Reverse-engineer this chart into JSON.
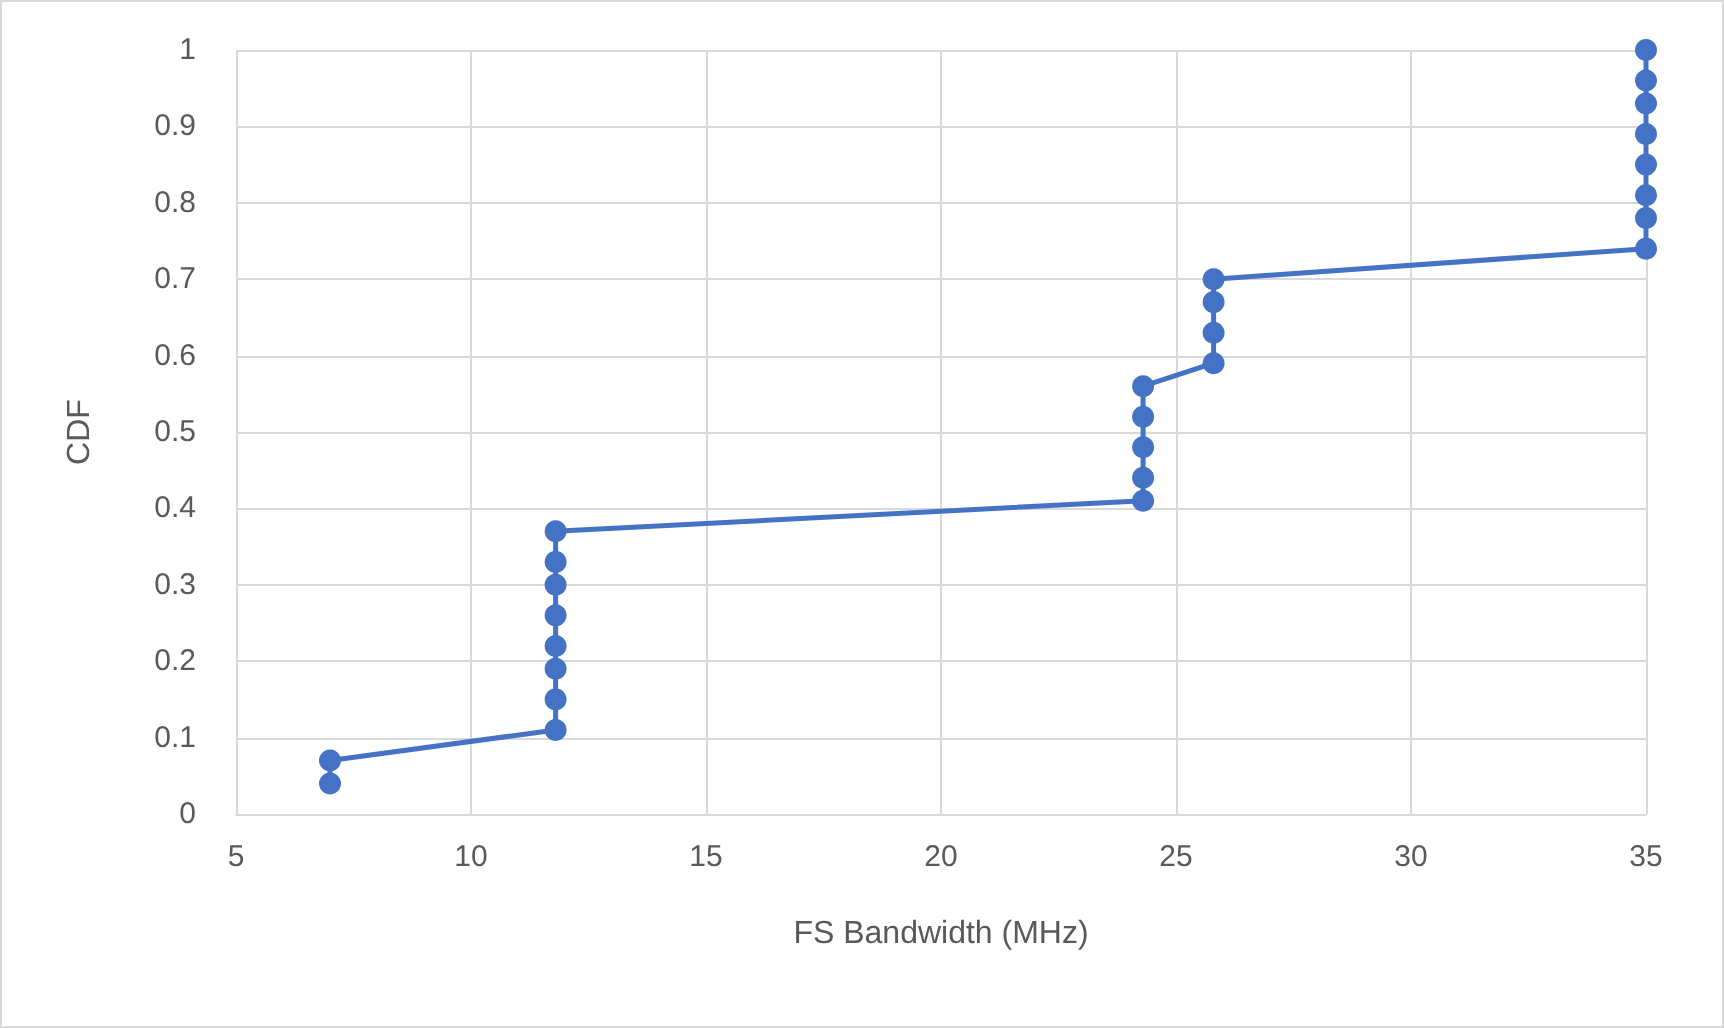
{
  "chart_data": {
    "type": "line",
    "xlabel": "FS Bandwidth (MHz)",
    "ylabel": "CDF",
    "x": [
      7,
      7,
      11.8,
      11.8,
      11.8,
      11.8,
      11.8,
      11.8,
      11.8,
      11.8,
      24.3,
      24.3,
      24.3,
      24.3,
      24.3,
      25.8,
      25.8,
      25.8,
      25.8,
      35,
      35,
      35,
      35,
      35,
      35,
      35,
      35
    ],
    "series": [
      {
        "color": "#4472c4",
        "values": [
          0.04,
          0.07,
          0.11,
          0.15,
          0.19,
          0.22,
          0.26,
          0.3,
          0.33,
          0.37,
          0.41,
          0.44,
          0.48,
          0.52,
          0.56,
          0.59,
          0.63,
          0.67,
          0.7,
          0.74,
          0.78,
          0.81,
          0.85,
          0.89,
          0.93,
          0.96,
          1
        ]
      }
    ],
    "xlim": [
      5,
      35
    ],
    "xticks": [
      5,
      10,
      15,
      20,
      25,
      30,
      35
    ],
    "ylim": [
      0,
      1
    ],
    "yticks": [
      0,
      0.1,
      0.2,
      0.3,
      0.4,
      0.5,
      0.6,
      0.7,
      0.8,
      0.9,
      1
    ],
    "grid": true,
    "marker": "circle",
    "line_style": "solid"
  }
}
